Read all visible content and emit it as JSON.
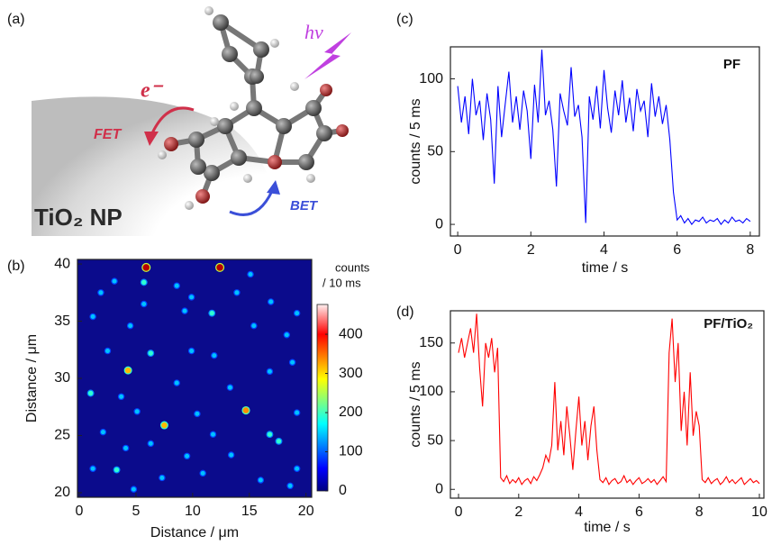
{
  "diagram": {
    "panel_label": "(a)",
    "photon": "hν",
    "electron": "e⁻",
    "fet": "FET",
    "bet": "BET",
    "nanoparticle": "TiO₂ NP"
  },
  "chart_data": [
    {
      "type": "heatmap",
      "panel_label": "(b)",
      "x_label": "Distance / μm",
      "y_label": "Distance / μm",
      "colorbar_label": [
        "counts",
        "/ 10 ms"
      ],
      "xlim": [
        -0.16,
        20.5
      ],
      "ylim": [
        19.6,
        40.4
      ],
      "xticks": [
        0,
        5,
        10,
        15,
        20
      ],
      "yticks": [
        20,
        25,
        30,
        35,
        40
      ],
      "clim": [
        0,
        476
      ],
      "colorbar_ticks": [
        0,
        100,
        200,
        300,
        400
      ],
      "background": "#0b0b8c",
      "x": [
        5.9,
        12.4,
        5.7,
        3.1,
        15.1,
        8.6,
        1.9,
        13.9,
        9.9,
        11.7,
        9.3,
        5.7,
        4.5,
        1.2,
        19.2,
        16.9,
        18.3,
        15.4,
        4.3,
        2.5,
        6.3,
        9.9,
        11.9,
        16.8,
        18.8,
        1.0,
        3.7,
        8.6,
        13.3,
        7.5,
        14.7,
        5.1,
        10.4,
        19.2,
        2.1,
        11.8,
        16.8,
        17.6,
        6.3,
        4.1,
        9.5,
        13.4,
        1.2,
        3.3,
        7.3,
        10.9,
        16.0,
        19.2,
        18.6,
        4.8
      ],
      "values": [
        39.7,
        39.7,
        38.4,
        38.5,
        39.1,
        38.1,
        37.5,
        37.5,
        37.1,
        35.7,
        35.9,
        36.5,
        34.6,
        35.4,
        35.7,
        36.7,
        33.8,
        34.6,
        30.7,
        32.4,
        32.2,
        32.4,
        32.0,
        30.6,
        31.4,
        28.7,
        28.4,
        29.6,
        29.2,
        25.9,
        27.2,
        27.1,
        26.9,
        27.0,
        25.3,
        25.1,
        25.1,
        24.5,
        24.3,
        23.9,
        23.2,
        23.3,
        22.1,
        22.0,
        21.3,
        21.7,
        21.1,
        22.1,
        20.6,
        20.3
      ],
      "intensity": [
        450,
        450,
        200,
        150,
        150,
        150,
        150,
        150,
        150,
        200,
        150,
        150,
        150,
        150,
        150,
        150,
        150,
        150,
        330,
        150,
        200,
        150,
        150,
        150,
        150,
        200,
        150,
        150,
        150,
        330,
        350,
        150,
        150,
        150,
        150,
        150,
        200,
        200,
        150,
        150,
        150,
        150,
        150,
        200,
        150,
        150,
        150,
        150,
        150,
        150
      ]
    },
    {
      "type": "line",
      "panel_label": "(c)",
      "annotation": "PF",
      "x_label": "time / s",
      "y_label": "counts / 5 ms",
      "color": "#0000ff",
      "xlim": [
        -0.2,
        8.25
      ],
      "ylim": [
        -8,
        122
      ],
      "xticks": [
        0,
        2,
        4,
        6,
        8
      ],
      "yticks": [
        0,
        50,
        100
      ],
      "x": [
        0,
        0.1,
        0.2,
        0.3,
        0.4,
        0.5,
        0.6,
        0.7,
        0.8,
        0.9,
        1.0,
        1.1,
        1.2,
        1.3,
        1.4,
        1.5,
        1.6,
        1.7,
        1.8,
        1.9,
        2.0,
        2.1,
        2.2,
        2.3,
        2.4,
        2.5,
        2.6,
        2.7,
        2.8,
        2.9,
        3.0,
        3.1,
        3.2,
        3.3,
        3.4,
        3.5,
        3.6,
        3.7,
        3.8,
        3.9,
        4.0,
        4.1,
        4.2,
        4.3,
        4.4,
        4.5,
        4.6,
        4.7,
        4.8,
        4.9,
        5.0,
        5.1,
        5.2,
        5.3,
        5.4,
        5.5,
        5.6,
        5.7,
        5.8,
        5.9,
        6.0,
        6.1,
        6.2,
        6.3,
        6.4,
        6.5,
        6.6,
        6.7,
        6.8,
        6.9,
        7.0,
        7.1,
        7.2,
        7.3,
        7.4,
        7.5,
        7.6,
        7.7,
        7.8,
        7.9,
        8.0
      ],
      "values": [
        95,
        70,
        88,
        62,
        100,
        75,
        85,
        58,
        90,
        72,
        28,
        95,
        60,
        83,
        105,
        70,
        88,
        65,
        92,
        78,
        45,
        96,
        70,
        120,
        75,
        85,
        65,
        26,
        90,
        78,
        68,
        108,
        74,
        82,
        60,
        1,
        88,
        72,
        95,
        66,
        106,
        80,
        63,
        92,
        75,
        99,
        70,
        87,
        64,
        93,
        78,
        85,
        60,
        97,
        74,
        88,
        69,
        82,
        58,
        22,
        3,
        6,
        1,
        4,
        0,
        3,
        2,
        5,
        1,
        3,
        2,
        4,
        0,
        3,
        1,
        5,
        2,
        3,
        1,
        4,
        2
      ]
    },
    {
      "type": "line",
      "panel_label": "(d)",
      "annotation": "PF/TiO₂",
      "x_label": "time / s",
      "y_label": "counts / 5 ms",
      "color": "#ff0000",
      "xlim": [
        -0.27,
        10.15
      ],
      "ylim": [
        -9,
        183
      ],
      "xticks": [
        0,
        2,
        4,
        6,
        8,
        10
      ],
      "yticks": [
        0,
        50,
        100,
        150
      ],
      "x": [
        0,
        0.1,
        0.2,
        0.3,
        0.4,
        0.5,
        0.6,
        0.7,
        0.8,
        0.9,
        1.0,
        1.1,
        1.2,
        1.3,
        1.4,
        1.5,
        1.6,
        1.7,
        1.8,
        1.9,
        2.0,
        2.1,
        2.2,
        2.3,
        2.4,
        2.5,
        2.6,
        2.7,
        2.8,
        2.9,
        3.0,
        3.1,
        3.2,
        3.3,
        3.4,
        3.5,
        3.6,
        3.7,
        3.8,
        3.9,
        4.0,
        4.1,
        4.2,
        4.3,
        4.4,
        4.5,
        4.6,
        4.7,
        4.8,
        4.9,
        5.0,
        5.1,
        5.2,
        5.3,
        5.4,
        5.5,
        5.6,
        5.7,
        5.8,
        5.9,
        6.0,
        6.1,
        6.2,
        6.3,
        6.4,
        6.5,
        6.6,
        6.7,
        6.8,
        6.9,
        7.0,
        7.1,
        7.2,
        7.3,
        7.4,
        7.5,
        7.6,
        7.7,
        7.8,
        7.9,
        8.0,
        8.1,
        8.2,
        8.3,
        8.4,
        8.5,
        8.6,
        8.7,
        8.8,
        8.9,
        9.0,
        9.1,
        9.2,
        9.3,
        9.4,
        9.5,
        9.6,
        9.7,
        9.8,
        9.9,
        10.0
      ],
      "values": [
        140,
        155,
        135,
        150,
        165,
        140,
        180,
        125,
        85,
        150,
        135,
        155,
        120,
        145,
        12,
        8,
        14,
        6,
        10,
        7,
        12,
        5,
        9,
        11,
        6,
        13,
        9,
        15,
        22,
        35,
        28,
        45,
        110,
        40,
        70,
        35,
        85,
        55,
        20,
        60,
        95,
        45,
        70,
        30,
        65,
        85,
        40,
        10,
        7,
        12,
        5,
        9,
        11,
        6,
        8,
        14,
        7,
        10,
        5,
        9,
        12,
        6,
        8,
        11,
        7,
        10,
        5,
        9,
        13,
        8,
        140,
        175,
        110,
        150,
        60,
        100,
        45,
        120,
        55,
        80,
        65,
        10,
        7,
        12,
        6,
        9,
        11,
        5,
        8,
        13,
        7,
        10,
        6,
        9,
        12,
        5,
        8,
        11,
        7,
        9,
        6
      ]
    }
  ]
}
